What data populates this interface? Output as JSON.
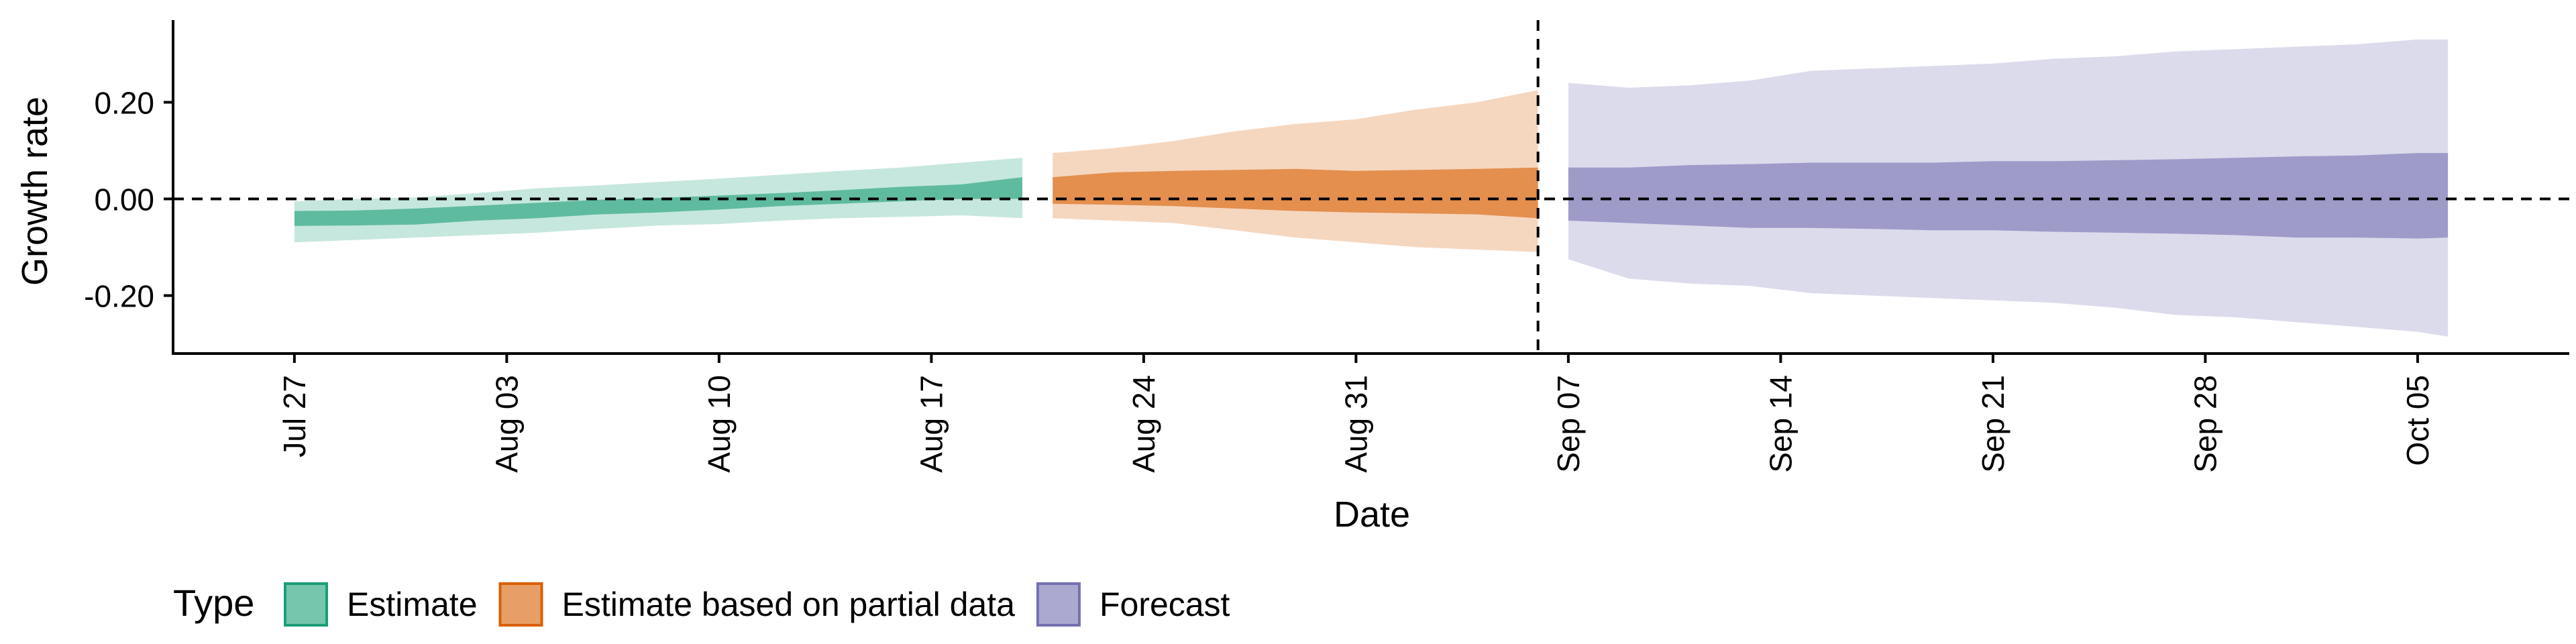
{
  "chart_data": {
    "type": "area",
    "title": "",
    "xlabel": "Date",
    "ylabel": "Growth rate",
    "x_tick_labels": [
      "Jul 27",
      "Aug 03",
      "Aug 10",
      "Aug 17",
      "Aug 24",
      "Aug 31",
      "Sep 07",
      "Sep 14",
      "Sep 21",
      "Sep 28",
      "Oct 05"
    ],
    "x_ticks": [
      "2020-07-27",
      "2020-08-03",
      "2020-08-10",
      "2020-08-17",
      "2020-08-24",
      "2020-08-31",
      "2020-09-07",
      "2020-09-14",
      "2020-09-21",
      "2020-09-28",
      "2020-10-05"
    ],
    "xlim": [
      "2020-07-23",
      "2020-10-10"
    ],
    "y_ticks": [
      -0.2,
      0.0,
      0.2
    ],
    "y_tick_labels": [
      "-0.20",
      "0.00",
      "0.20"
    ],
    "ylim": [
      -0.32,
      0.37
    ],
    "grid": false,
    "reference_lines": {
      "horizontal_y": 0.0,
      "vertical_x": "2020-09-06"
    },
    "legend": {
      "title": "Type",
      "position": "bottom-left",
      "entries": [
        {
          "label": "Estimate",
          "fill": "#1b9e77",
          "border": "#1b9e77"
        },
        {
          "label": "Estimate based on partial data",
          "fill": "#d95f02",
          "border": "#d95f02"
        },
        {
          "label": "Forecast",
          "fill": "#7570b3",
          "border": "#7570b3"
        }
      ]
    },
    "series": [
      {
        "name": "Estimate",
        "color": "#1b9e77",
        "x": [
          "2020-07-27",
          "2020-07-29",
          "2020-07-31",
          "2020-08-02",
          "2020-08-04",
          "2020-08-06",
          "2020-08-08",
          "2020-08-10",
          "2020-08-12",
          "2020-08-14",
          "2020-08-16",
          "2020-08-18",
          "2020-08-20"
        ],
        "outer_lower": [
          -0.09,
          -0.085,
          -0.08,
          -0.075,
          -0.07,
          -0.062,
          -0.055,
          -0.052,
          -0.045,
          -0.04,
          -0.037,
          -0.034,
          -0.04
        ],
        "outer_upper": [
          -0.005,
          0.0,
          0.003,
          0.012,
          0.022,
          0.028,
          0.035,
          0.042,
          0.05,
          0.058,
          0.065,
          0.075,
          0.085
        ],
        "inner_lower": [
          -0.056,
          -0.055,
          -0.053,
          -0.045,
          -0.04,
          -0.032,
          -0.028,
          -0.022,
          -0.015,
          -0.01,
          -0.005,
          0.0,
          0.0
        ],
        "inner_upper": [
          -0.025,
          -0.024,
          -0.02,
          -0.014,
          -0.008,
          -0.002,
          0.002,
          0.007,
          0.012,
          0.018,
          0.025,
          0.03,
          0.045
        ]
      },
      {
        "name": "Estimate based on partial data",
        "color": "#d95f02",
        "x": [
          "2020-08-21",
          "2020-08-23",
          "2020-08-25",
          "2020-08-27",
          "2020-08-29",
          "2020-08-31",
          "2020-09-02",
          "2020-09-04",
          "2020-09-06"
        ],
        "outer_lower": [
          -0.04,
          -0.045,
          -0.05,
          -0.065,
          -0.08,
          -0.09,
          -0.1,
          -0.105,
          -0.11
        ],
        "outer_upper": [
          0.095,
          0.105,
          0.12,
          0.14,
          0.155,
          0.165,
          0.185,
          0.2,
          0.225
        ],
        "inner_lower": [
          -0.01,
          -0.012,
          -0.015,
          -0.02,
          -0.025,
          -0.028,
          -0.03,
          -0.032,
          -0.04
        ],
        "inner_upper": [
          0.045,
          0.055,
          0.058,
          0.06,
          0.062,
          0.058,
          0.06,
          0.062,
          0.065
        ]
      },
      {
        "name": "Forecast",
        "color": "#7570b3",
        "x": [
          "2020-09-07",
          "2020-09-09",
          "2020-09-11",
          "2020-09-13",
          "2020-09-15",
          "2020-09-17",
          "2020-09-19",
          "2020-09-21",
          "2020-09-23",
          "2020-09-25",
          "2020-09-27",
          "2020-09-29",
          "2020-10-01",
          "2020-10-03",
          "2020-10-05",
          "2020-10-06"
        ],
        "outer_lower": [
          -0.125,
          -0.165,
          -0.175,
          -0.18,
          -0.195,
          -0.2,
          -0.205,
          -0.21,
          -0.215,
          -0.225,
          -0.24,
          -0.245,
          -0.255,
          -0.265,
          -0.275,
          -0.285
        ],
        "outer_upper": [
          0.24,
          0.23,
          0.235,
          0.245,
          0.265,
          0.27,
          0.275,
          0.28,
          0.29,
          0.295,
          0.305,
          0.31,
          0.315,
          0.32,
          0.33,
          0.33
        ],
        "inner_lower": [
          -0.045,
          -0.05,
          -0.055,
          -0.06,
          -0.06,
          -0.062,
          -0.065,
          -0.065,
          -0.068,
          -0.07,
          -0.072,
          -0.075,
          -0.08,
          -0.08,
          -0.082,
          -0.08
        ],
        "inner_upper": [
          0.065,
          0.065,
          0.07,
          0.072,
          0.075,
          0.075,
          0.075,
          0.078,
          0.078,
          0.08,
          0.082,
          0.085,
          0.088,
          0.09,
          0.095,
          0.095
        ]
      }
    ]
  }
}
